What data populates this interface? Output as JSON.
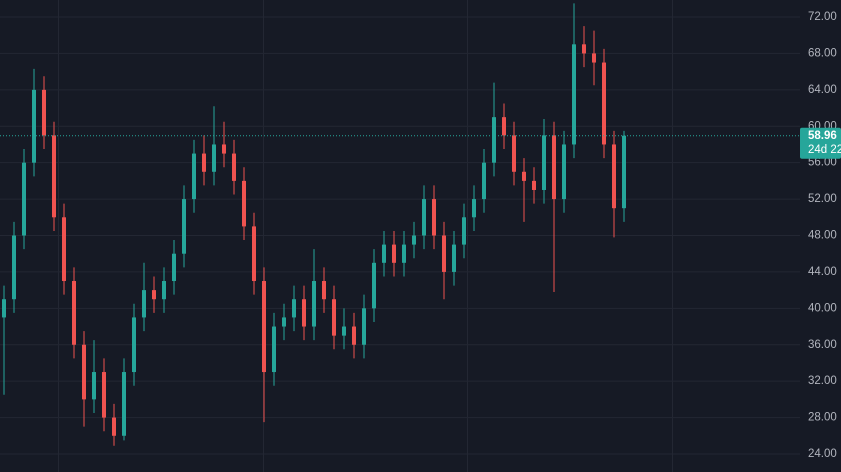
{
  "chart_data": {
    "type": "candlestick",
    "open": [
      39,
      41,
      48,
      56,
      64,
      59,
      50,
      43,
      36,
      30,
      33,
      28,
      26,
      33,
      39,
      42,
      41,
      43,
      46,
      52,
      57,
      55,
      58,
      57,
      54,
      49,
      43,
      33,
      38,
      39,
      41,
      38,
      43,
      41,
      37,
      38,
      36,
      40,
      45,
      47,
      45,
      47,
      48,
      52,
      48,
      44,
      47,
      50,
      52,
      56,
      61,
      59,
      55,
      54,
      53,
      59,
      52,
      58,
      69,
      68,
      67,
      58,
      51
    ],
    "high": [
      42.5,
      49.5,
      57.5,
      66.3,
      65.5,
      60.5,
      51.5,
      44.5,
      37.5,
      36.5,
      34.5,
      29.5,
      34.5,
      40.5,
      45,
      43.5,
      44.5,
      47.5,
      53.5,
      58.5,
      59,
      62.2,
      60.5,
      58.5,
      55.5,
      50.5,
      44.5,
      39.5,
      40.5,
      42.5,
      42.5,
      46.5,
      44.5,
      42.5,
      40,
      39.5,
      41.5,
      46.5,
      48.5,
      48.5,
      48.5,
      49.5,
      53.5,
      53.5,
      49.5,
      48.5,
      51.5,
      53.5,
      57.5,
      64.8,
      62.5,
      60.5,
      56.5,
      55.5,
      60.8,
      60.5,
      59.5,
      73.5,
      71,
      70.5,
      68.5,
      59.5,
      59.5
    ],
    "low": [
      30.5,
      39.5,
      46.5,
      54.5,
      57.5,
      48.5,
      41.5,
      34.5,
      27,
      28.5,
      26.5,
      24.9,
      25.5,
      31.5,
      37.5,
      39.5,
      39.5,
      41.5,
      44.5,
      50.5,
      53.5,
      53.5,
      55.5,
      52.5,
      47.5,
      41.5,
      27.5,
      31.5,
      36.5,
      37.5,
      36.5,
      36.5,
      39.5,
      35.5,
      35.5,
      34.5,
      34.5,
      38.5,
      43.5,
      43.5,
      43.5,
      45.5,
      46.5,
      46.5,
      41,
      42.5,
      45.5,
      48.5,
      50.5,
      54.5,
      57.5,
      53.5,
      49.5,
      51.5,
      51.5,
      41.8,
      50.5,
      56.5,
      66.5,
      64.5,
      56.5,
      47.8,
      49.5
    ],
    "close": [
      41,
      48,
      56,
      64,
      59,
      50,
      43,
      36,
      30,
      33,
      28,
      26,
      33,
      39,
      42,
      41,
      43,
      46,
      52,
      57,
      55,
      58,
      57,
      54,
      49,
      43,
      33,
      38,
      39,
      41,
      38,
      43,
      41,
      37,
      38,
      36,
      40,
      45,
      47,
      45,
      47,
      48,
      52,
      48,
      44,
      47,
      50,
      52,
      56,
      61,
      59,
      55,
      54,
      53,
      59,
      52,
      58,
      69,
      68,
      67,
      58,
      51,
      58.96
    ],
    "up_color": "#26a69a",
    "down_color": "#ef5350",
    "ylim": [
      22.02,
      73.87
    ],
    "yticks": [
      {
        "value": 24,
        "label": "24.00"
      },
      {
        "value": 28,
        "label": "28.00"
      },
      {
        "value": 32,
        "label": "32.00"
      },
      {
        "value": 36,
        "label": "36.00"
      },
      {
        "value": 40,
        "label": "40.00"
      },
      {
        "value": 44,
        "label": "44.00"
      },
      {
        "value": 48,
        "label": "48.00"
      },
      {
        "value": 52,
        "label": "52.00"
      },
      {
        "value": 56,
        "label": "56.00"
      },
      {
        "value": 60,
        "label": "60.00"
      },
      {
        "value": 64,
        "label": "64.00"
      },
      {
        "value": 68,
        "label": "68.00"
      },
      {
        "value": 72,
        "label": "72.00"
      }
    ],
    "grid": true,
    "last_price": 58.96,
    "countdown": "24d 22"
  }
}
